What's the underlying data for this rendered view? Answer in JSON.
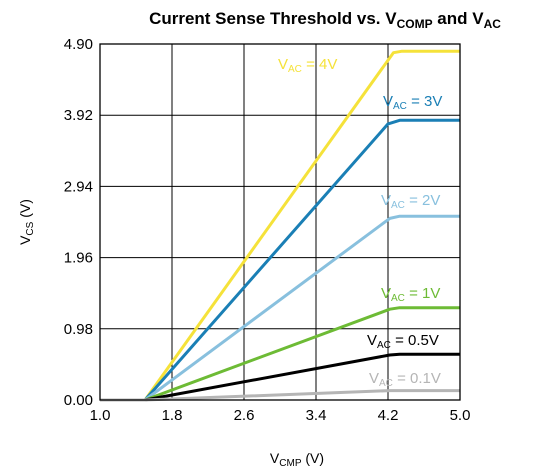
{
  "chart_data": {
    "type": "line",
    "title": {
      "prefix": "Current Sense Threshold vs. V",
      "sub1": "COMP",
      "middle": " and V",
      "sub2": "AC"
    },
    "xlabel": {
      "main": "V",
      "sub": "CMP",
      "unit": " (V)"
    },
    "ylabel": {
      "main": "V",
      "sub": "CS",
      "unit": " (V)"
    },
    "xlim": [
      1.0,
      5.0
    ],
    "ylim": [
      0.0,
      4.9
    ],
    "x_ticks": [
      "1.0",
      "1.8",
      "2.6",
      "3.4",
      "4.2",
      "5.0"
    ],
    "y_ticks": [
      "0.00",
      "0.98",
      "1.96",
      "2.94",
      "3.92",
      "4.90"
    ],
    "grid": true,
    "series": [
      {
        "label": {
          "main": "V",
          "sub": "AC",
          "value": " = 4V"
        },
        "color": "#f5e23a",
        "x": [
          1.0,
          1.5,
          4.26,
          4.35,
          5.0
        ],
        "y": [
          0.0,
          0.0,
          4.78,
          4.8,
          4.8
        ]
      },
      {
        "label": {
          "main": "V",
          "sub": "AC",
          "value": " = 3V"
        },
        "color": "#1a7fb5",
        "x": [
          1.0,
          1.5,
          4.2,
          4.33,
          5.0
        ],
        "y": [
          0.0,
          0.0,
          3.8,
          3.85,
          3.85
        ]
      },
      {
        "label": {
          "main": "V",
          "sub": "AC",
          "value": " = 2V"
        },
        "color": "#88c0de",
        "x": [
          1.0,
          1.5,
          4.22,
          4.33,
          5.0
        ],
        "y": [
          0.0,
          0.0,
          2.5,
          2.53,
          2.53
        ]
      },
      {
        "label": {
          "main": "V",
          "sub": "AC",
          "value": " = 1V"
        },
        "color": "#6dbb35",
        "x": [
          1.0,
          1.5,
          4.22,
          4.33,
          5.0
        ],
        "y": [
          0.0,
          0.0,
          1.25,
          1.27,
          1.27
        ]
      },
      {
        "label": {
          "main": "V",
          "sub": "AC",
          "value": " = 0.5V"
        },
        "color": "#000000",
        "x": [
          1.0,
          1.5,
          4.22,
          4.33,
          5.0
        ],
        "y": [
          0.0,
          0.0,
          0.62,
          0.63,
          0.63
        ]
      },
      {
        "label": {
          "main": "V",
          "sub": "AC",
          "value": " = 0.1V"
        },
        "color": "#b5b5b5",
        "x": [
          1.0,
          1.5,
          4.22,
          4.33,
          5.0
        ],
        "y": [
          0.0,
          0.0,
          0.13,
          0.13,
          0.13
        ]
      }
    ]
  }
}
